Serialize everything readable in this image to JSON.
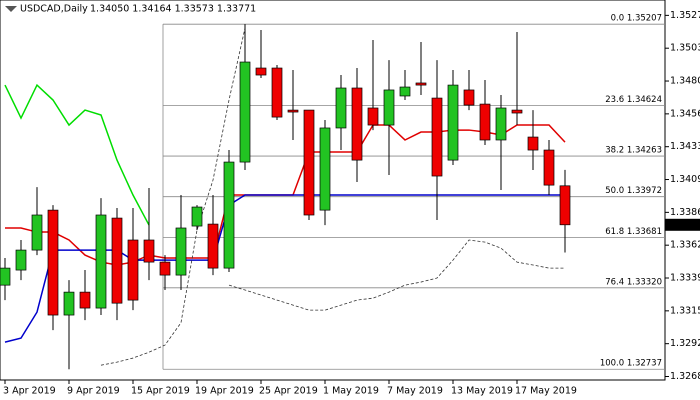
{
  "chart_data": {
    "type": "candlestick",
    "title": "USDCAD,Daily",
    "header_prices": "1.34050 1.34164 1.33573 1.33771",
    "categories": [
      "3 Apr 2019",
      null,
      null,
      null,
      "9 Apr 2019",
      null,
      null,
      null,
      "15 Apr 2019",
      null,
      null,
      null,
      "19 Apr 2019",
      null,
      null,
      null,
      "25 Apr 2019",
      null,
      null,
      null,
      "1 May 2019",
      null,
      null,
      null,
      "7 May 2019",
      null,
      null,
      null,
      "13 May 2019",
      null,
      null,
      null,
      "17 May 2019",
      null,
      null,
      null
    ],
    "open": [
      1.33339,
      1.33447,
      1.3359,
      1.33876,
      1.33125,
      1.33289,
      1.33175,
      1.33819,
      1.33662,
      1.33662,
      1.33504,
      1.33411,
      1.33762,
      1.33776,
      1.33461,
      1.3422,
      1.34893,
      1.34893,
      1.34592,
      1.34592,
      1.33876,
      1.34464,
      1.3475,
      1.34607,
      1.34485,
      1.34693,
      1.34786,
      1.34678,
      1.34234,
      1.34736,
      1.34635,
      1.34378,
      1.34592,
      1.34399,
      1.34306,
      1.3405
    ],
    "high": [
      1.33533,
      1.33662,
      1.34041,
      1.33912,
      1.33375,
      1.33447,
      1.33962,
      1.33891,
      1.33891,
      1.34034,
      1.33554,
      1.33984,
      1.33912,
      1.33984,
      1.34306,
      1.35207,
      1.35165,
      1.34915,
      1.34879,
      1.34592,
      1.34521,
      1.34843,
      1.34893,
      1.35094,
      1.3495,
      1.34879,
      1.35079,
      1.3495,
      1.34879,
      1.34879,
      1.34807,
      1.347,
      1.35151,
      1.34592,
      1.34378,
      1.34164
    ],
    "low": [
      1.33232,
      1.33375,
      1.33554,
      1.33017,
      1.32737,
      1.33089,
      1.33125,
      1.33089,
      1.3316,
      1.33375,
      1.33304,
      1.33304,
      1.33733,
      1.33411,
      1.33433,
      1.34163,
      1.34822,
      1.34521,
      1.34378,
      1.33805,
      1.33769,
      1.34306,
      1.34077,
      1.34449,
      1.34127,
      1.34664,
      1.347,
      1.33805,
      1.34199,
      1.34592,
      1.34342,
      1.3402,
      1.34485,
      1.34163,
      1.33984,
      1.33573
    ],
    "close": [
      1.33461,
      1.3359,
      1.33841,
      1.33125,
      1.33289,
      1.33175,
      1.33841,
      1.3321,
      1.33232,
      1.33504,
      1.33411,
      1.33748,
      1.33898,
      1.33461,
      1.3422,
      1.34936,
      1.34843,
      1.34542,
      1.34578,
      1.33841,
      1.34464,
      1.3475,
      1.34234,
      1.34485,
      1.34736,
      1.34757,
      1.34771,
      1.3412,
      1.34771,
      1.34628,
      1.34378,
      1.34607,
      1.34571,
      1.34306,
      1.34055,
      1.33771
    ],
    "up_color": "#22c322",
    "down_color": "#ee0000",
    "indicators": [
      {
        "color": "#00dd00",
        "dash": "",
        "values": [
          1.34771,
          1.34535,
          1.34771,
          1.34664,
          1.34485,
          1.34592,
          1.34557,
          1.34234,
          1.33984,
          1.33769,
          null,
          null,
          null,
          null,
          null,
          null,
          null,
          null,
          null,
          null,
          null,
          null,
          null,
          null,
          null,
          null,
          null,
          null,
          null,
          null,
          null,
          null,
          null,
          null,
          null,
          null
        ]
      },
      {
        "color": "#e00000",
        "dash": "",
        "values": [
          1.33748,
          1.33748,
          1.33719,
          1.33719,
          1.33662,
          1.33554,
          1.33504,
          1.33483,
          1.33504,
          1.33554,
          1.33533,
          1.33533,
          1.33533,
          1.33533,
          1.33984,
          1.33984,
          1.33984,
          1.33984,
          1.33984,
          1.34292,
          1.34292,
          1.34292,
          1.34292,
          1.34485,
          1.34485,
          1.34378,
          1.34435,
          1.34435,
          1.34449,
          1.34449,
          1.34435,
          1.34414,
          1.34485,
          1.34485,
          1.34485,
          1.34363
        ]
      },
      {
        "color": "#0000cc",
        "dash": "",
        "values": [
          1.32931,
          1.3296,
          1.33146,
          1.3359,
          1.3359,
          1.3359,
          1.3359,
          1.3359,
          1.33518,
          1.33518,
          1.33518,
          1.33518,
          1.33518,
          1.33518,
          1.33912,
          1.33984,
          1.33984,
          1.33984,
          1.33984,
          1.33984,
          1.33984,
          1.33984,
          1.33984,
          1.33984,
          1.33984,
          1.33984,
          1.33984,
          1.33984,
          1.33984,
          1.33984,
          1.33984,
          1.33984,
          1.33984,
          1.33984,
          1.33984,
          1.33984
        ]
      },
      {
        "color": "#333333",
        "dash": "3 2",
        "values": [
          null,
          null,
          null,
          null,
          null,
          null,
          1.32766,
          1.32788,
          1.32817,
          1.32859,
          1.3291,
          1.3307,
          1.33733,
          1.34091,
          1.34664,
          1.35179,
          null,
          null,
          null,
          null,
          null,
          null,
          null,
          null,
          null,
          null,
          null,
          null,
          null,
          null,
          null,
          null,
          null,
          null,
          null,
          null
        ]
      },
      {
        "color": "#333333",
        "dash": "3 2",
        "values": [
          null,
          null,
          null,
          null,
          null,
          null,
          null,
          null,
          null,
          null,
          null,
          null,
          null,
          null,
          1.33339,
          1.33304,
          1.33268,
          1.33232,
          1.33196,
          1.3316,
          1.3316,
          1.33196,
          1.33232,
          1.33246,
          1.33289,
          1.33339,
          1.33361,
          1.3339,
          1.33518,
          1.33662,
          1.33647,
          1.33604,
          1.33504,
          1.33483,
          1.33461,
          1.33461
        ]
      }
    ],
    "fib_levels": [
      {
        "value": 1.35207,
        "label": "0.0 1.35207"
      },
      {
        "value": 1.34624,
        "label": "23.6 1.34624"
      },
      {
        "value": 1.34263,
        "label": "38.2 1.34263"
      },
      {
        "value": 1.33972,
        "label": "50.0 1.33972"
      },
      {
        "value": 1.33681,
        "label": "61.8 1.33681"
      },
      {
        "value": 1.3332,
        "label": "76.4 1.33320"
      },
      {
        "value": 1.32737,
        "label": "100.0 1.32737"
      }
    ],
    "last_price": {
      "value": 1.33771,
      "label": "1.33771"
    },
    "ylim": [
      1.3266,
      1.3538
    ],
    "yticks": [
      {
        "value": 1.3527,
        "label": "1.35270"
      },
      1.35035,
      {
        "value": 1.348,
        "label": "1.34800"
      },
      1.34565,
      {
        "value": 1.3433,
        "label": "1.34330"
      },
      1.34095,
      {
        "value": 1.3386,
        "label": "1.33860"
      },
      1.33625,
      {
        "value": 1.3339,
        "label": "1.33390"
      },
      1.33155,
      {
        "value": 1.3292,
        "label": "1.32920"
      },
      1.32685
    ]
  }
}
